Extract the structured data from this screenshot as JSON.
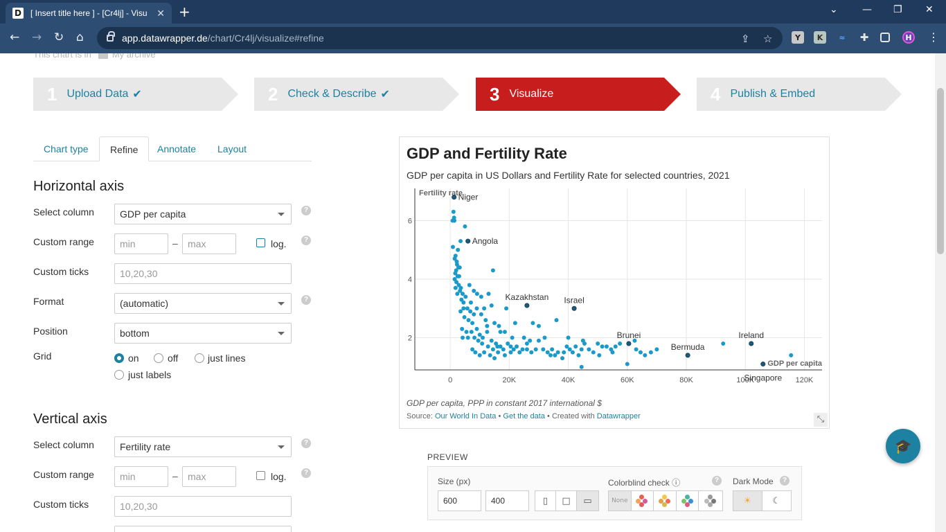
{
  "browser": {
    "tab_title": "[ Insert title here ] - [Cr4lj] - Visu",
    "favicon_letter": "D",
    "url_host": "app.datawrapper.de",
    "url_path": "/chart/Cr4lj/visualize#refine",
    "extensions": [
      "Y",
      "K",
      "~",
      "puzzle-icon",
      "sidebar-icon",
      "profile"
    ]
  },
  "archive": {
    "prefix": "This chart is in",
    "folder": "My archive"
  },
  "steps": [
    {
      "num": "1",
      "label": "Upload Data",
      "done": true
    },
    {
      "num": "2",
      "label": "Check & Describe",
      "done": true
    },
    {
      "num": "3",
      "label": "Visualize",
      "active": true
    },
    {
      "num": "4",
      "label": "Publish & Embed"
    }
  ],
  "subtabs": [
    "Chart type",
    "Refine",
    "Annotate",
    "Layout"
  ],
  "horizontal_axis": {
    "title": "Horizontal axis",
    "select_column_label": "Select column",
    "select_column_value": "GDP per capita",
    "custom_range_label": "Custom range",
    "min_placeholder": "min",
    "max_placeholder": "max",
    "dash": "–",
    "log_label": "log.",
    "custom_ticks_label": "Custom ticks",
    "custom_ticks_placeholder": "10,20,30",
    "format_label": "Format",
    "format_value": "(automatic)",
    "position_label": "Position",
    "position_value": "bottom",
    "grid_label": "Grid",
    "grid_options": [
      "on",
      "off",
      "just lines",
      "just labels"
    ],
    "grid_selected": "on"
  },
  "vertical_axis": {
    "title": "Vertical axis",
    "select_column_label": "Select column",
    "select_column_value": "Fertility rate",
    "custom_range_label": "Custom range",
    "min_placeholder": "min",
    "max_placeholder": "max",
    "dash": "–",
    "log_label": "log.",
    "custom_ticks_label": "Custom ticks",
    "custom_ticks_placeholder": "10,20,30"
  },
  "help_glyph": "?",
  "chart": {
    "title": "GDP and Fertility Rate",
    "subtitle": "GDP per capita in US Dollars and Fertility Rate for selected countries, 2021",
    "notes": "GDP per capita, PPP in constant 2017 international $",
    "source_prefix": "Source:",
    "source_name": "Our World In Data",
    "get_data": "Get the data",
    "created_with": "Created with",
    "tool": "Datawrapper",
    "sep": "•"
  },
  "chart_data": {
    "type": "scatter",
    "xlabel": "GDP per capita",
    "ylabel": "Fertility rate",
    "xlim": [
      -12000,
      126000
    ],
    "ylim": [
      0.9,
      7.1
    ],
    "xticks": [
      0,
      20000,
      40000,
      60000,
      80000,
      100000,
      120000
    ],
    "xtick_labels": [
      "0",
      "20K",
      "40K",
      "60K",
      "80K",
      "100K",
      "120K"
    ],
    "yticks": [
      2,
      4,
      6
    ],
    "ytick_labels": [
      "2",
      "4",
      "6"
    ],
    "grid": true,
    "color": "#1a9ac9",
    "highlight_color": "#1b5a7a",
    "labeled_points": [
      {
        "label": "Niger",
        "x": 1300,
        "y": 6.8
      },
      {
        "label": "Angola",
        "x": 6000,
        "y": 5.3
      },
      {
        "label": "Kazakhstan",
        "x": 26000,
        "y": 3.1
      },
      {
        "label": "Israel",
        "x": 42000,
        "y": 3.0
      },
      {
        "label": "Brunei",
        "x": 60500,
        "y": 1.8
      },
      {
        "label": "Bermuda",
        "x": 80500,
        "y": 1.4
      },
      {
        "label": "Ireland",
        "x": 102000,
        "y": 1.8
      },
      {
        "label": "Singapore",
        "x": 106000,
        "y": 1.1
      }
    ],
    "points": [
      [
        1100,
        6.3
      ],
      [
        1300,
        6.1
      ],
      [
        800,
        6.0
      ],
      [
        1400,
        6.0
      ],
      [
        900,
        5.1
      ],
      [
        2600,
        5.0
      ],
      [
        3500,
        5.3
      ],
      [
        1800,
        4.8
      ],
      [
        1500,
        4.7
      ],
      [
        2300,
        4.5
      ],
      [
        2800,
        4.4
      ],
      [
        2000,
        4.3
      ],
      [
        3200,
        4.4
      ],
      [
        1700,
        4.2
      ],
      [
        2500,
        4.1
      ],
      [
        1500,
        4.0
      ],
      [
        2100,
        3.9
      ],
      [
        2900,
        3.8
      ],
      [
        1800,
        3.7
      ],
      [
        3600,
        3.7
      ],
      [
        4200,
        3.5
      ],
      [
        2400,
        3.5
      ],
      [
        3300,
        3.6
      ],
      [
        3800,
        3.3
      ],
      [
        5200,
        3.4
      ],
      [
        7000,
        3.2
      ],
      [
        9100,
        3.5
      ],
      [
        10500,
        3.4
      ],
      [
        13000,
        3.5
      ],
      [
        4500,
        3.2
      ],
      [
        5800,
        3.0
      ],
      [
        6800,
        2.9
      ],
      [
        8000,
        2.8
      ],
      [
        9000,
        3.0
      ],
      [
        11500,
        3.0
      ],
      [
        14000,
        3.1
      ],
      [
        3500,
        2.9
      ],
      [
        4800,
        2.7
      ],
      [
        6200,
        2.6
      ],
      [
        7500,
        2.5
      ],
      [
        10500,
        2.8
      ],
      [
        12000,
        2.6
      ],
      [
        15000,
        2.5
      ],
      [
        16500,
        2.4
      ],
      [
        4000,
        2.3
      ],
      [
        5500,
        2.2
      ],
      [
        7200,
        2.2
      ],
      [
        9000,
        2.3
      ],
      [
        10000,
        2.1
      ],
      [
        11000,
        2.0
      ],
      [
        12500,
        2.2
      ],
      [
        14000,
        1.9
      ],
      [
        15500,
        1.8
      ],
      [
        17000,
        1.7
      ],
      [
        4200,
        2.0
      ],
      [
        6000,
        2.0
      ],
      [
        8200,
        2.0
      ],
      [
        9500,
        1.9
      ],
      [
        10800,
        1.8
      ],
      [
        12800,
        1.7
      ],
      [
        14500,
        1.6
      ],
      [
        16200,
        1.5
      ],
      [
        18000,
        1.6
      ],
      [
        19500,
        1.8
      ],
      [
        20500,
        1.7
      ],
      [
        21500,
        1.6
      ],
      [
        22500,
        1.7
      ],
      [
        23500,
        1.5
      ],
      [
        24500,
        1.6
      ],
      [
        26000,
        1.6
      ],
      [
        27500,
        1.5
      ],
      [
        29000,
        1.6
      ],
      [
        30000,
        1.9
      ],
      [
        31500,
        1.6
      ],
      [
        33000,
        1.5
      ],
      [
        34500,
        1.6
      ],
      [
        35500,
        1.4
      ],
      [
        36500,
        1.5
      ],
      [
        38500,
        1.5
      ],
      [
        39500,
        1.7
      ],
      [
        40500,
        1.6
      ],
      [
        41500,
        1.5
      ],
      [
        42500,
        1.7
      ],
      [
        43500,
        1.4
      ],
      [
        44500,
        1.6
      ],
      [
        45500,
        1.8
      ],
      [
        47000,
        1.6
      ],
      [
        48500,
        1.5
      ],
      [
        50000,
        1.8
      ],
      [
        51500,
        1.7
      ],
      [
        53000,
        1.7
      ],
      [
        54500,
        1.6
      ],
      [
        56000,
        1.7
      ],
      [
        57500,
        1.8
      ],
      [
        63000,
        1.6
      ],
      [
        64500,
        1.5
      ],
      [
        66000,
        1.4
      ],
      [
        68000,
        1.5
      ],
      [
        70000,
        1.6
      ],
      [
        60000,
        1.1
      ],
      [
        8500,
        1.5
      ],
      [
        10000,
        1.4
      ],
      [
        11500,
        1.5
      ],
      [
        13500,
        1.4
      ],
      [
        15000,
        1.3
      ],
      [
        18500,
        1.4
      ],
      [
        7500,
        1.6
      ],
      [
        20500,
        1.5
      ],
      [
        34000,
        1.4
      ],
      [
        38000,
        1.3
      ],
      [
        44500,
        1.0
      ],
      [
        30000,
        2.4
      ],
      [
        28000,
        2.5
      ],
      [
        32000,
        2.0
      ],
      [
        36000,
        2.6
      ],
      [
        22000,
        2.5
      ],
      [
        19000,
        3.0
      ],
      [
        17000,
        2.2
      ],
      [
        25000,
        2.0
      ],
      [
        40000,
        2.0
      ],
      [
        45000,
        1.9
      ],
      [
        50500,
        1.4
      ],
      [
        55000,
        1.5
      ],
      [
        62500,
        1.9
      ],
      [
        92500,
        1.8
      ],
      [
        115500,
        1.4
      ],
      [
        14500,
        4.3
      ],
      [
        5000,
        5.8
      ],
      [
        6500,
        3.8
      ],
      [
        8000,
        3.6
      ],
      [
        12500,
        2.4
      ],
      [
        4500,
        3.0
      ],
      [
        3000,
        4.1
      ],
      [
        2200,
        4.6
      ],
      [
        18500,
        2.2
      ],
      [
        26000,
        1.8
      ],
      [
        27000,
        1.9
      ],
      [
        21000,
        2.0
      ],
      [
        16000,
        1.7
      ]
    ]
  },
  "preview": {
    "label": "PREVIEW",
    "size_label": "Size (px)",
    "width": "600",
    "height": "400",
    "colorblind_label": "Colorblind check",
    "none_label": "None",
    "dark_mode_label": "Dark Mode"
  }
}
